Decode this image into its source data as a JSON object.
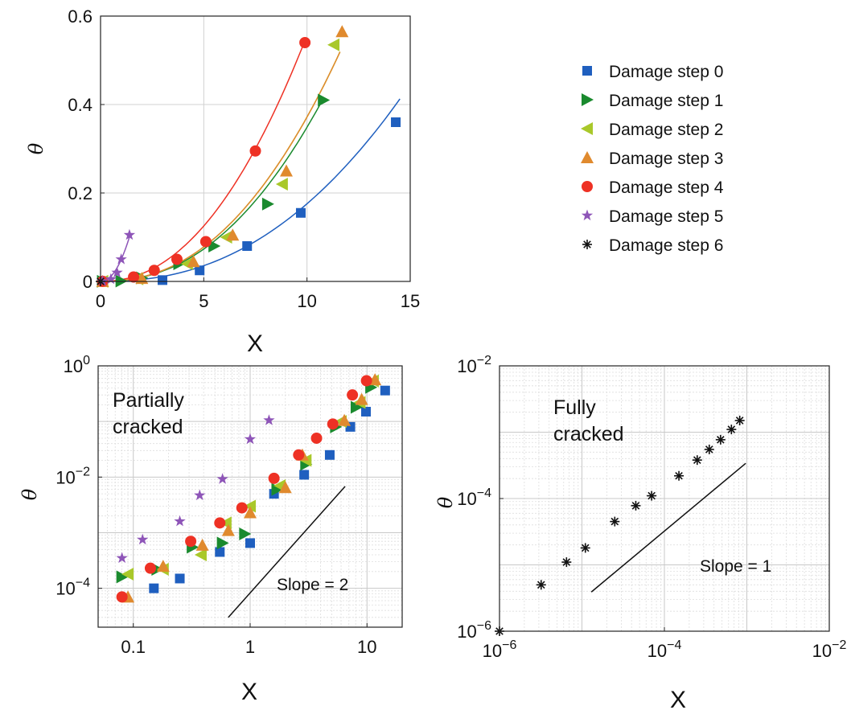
{
  "chart_data": [
    {
      "type": "scatter",
      "xlabel": "X",
      "ylabel": "θ",
      "xlim": [
        0,
        15
      ],
      "ylim": [
        0,
        0.6
      ],
      "xscale": "linear",
      "yscale": "linear",
      "grid": true,
      "xticks": [
        "0",
        "5",
        "10",
        "15"
      ],
      "yticks": [
        "0",
        "0.2",
        "0.4",
        "0.6"
      ],
      "legend_position": "outside-right",
      "series": [
        {
          "name": "Damage step 0",
          "color": "#1f5fbf",
          "marker": "square",
          "x": [
            0.1,
            3.0,
            4.8,
            7.1,
            9.7,
            14.3
          ],
          "y": [
            0.0002,
            0.003,
            0.025,
            0.08,
            0.155,
            0.36
          ],
          "fit": {
            "a": 0.00088,
            "p": 2.3,
            "xmax": 14.5
          }
        },
        {
          "name": "Damage step 1",
          "color": "#1a8a2e",
          "marker": "triangle-right",
          "x": [
            0.1,
            1.0,
            2.0,
            3.8,
            5.5,
            8.1,
            10.8
          ],
          "y": [
            0.0002,
            0.001,
            0.008,
            0.04,
            0.08,
            0.175,
            0.41
          ],
          "fit": {
            "a": 0.00196,
            "p": 2.25,
            "xmax": 10.8
          }
        },
        {
          "name": "Damage step 2",
          "color": "#a9c82a",
          "marker": "triangle-left",
          "x": [
            0.1,
            1.8,
            4.2,
            6.1,
            8.8,
            11.3
          ],
          "y": [
            0.0002,
            0.006,
            0.04,
            0.1,
            0.22,
            0.535
          ],
          "fit": {
            "a": 0.00209,
            "p": 2.25,
            "xmax": 11.6
          }
        },
        {
          "name": "Damage step 3",
          "color": "#e08a2e",
          "marker": "triangle-up",
          "x": [
            0.1,
            2.0,
            4.5,
            6.4,
            9.0,
            11.7
          ],
          "y": [
            0.0002,
            0.007,
            0.045,
            0.105,
            0.25,
            0.565
          ],
          "fit": {
            "a": 0.00209,
            "p": 2.25,
            "xmax": 11.6
          }
        },
        {
          "name": "Damage step 4",
          "color": "#ee3124",
          "marker": "circle",
          "x": [
            0.1,
            1.6,
            2.6,
            3.7,
            5.1,
            7.5,
            9.9
          ],
          "y": [
            0.0003,
            0.01,
            0.025,
            0.05,
            0.09,
            0.295,
            0.54
          ],
          "fit": {
            "a": 0.00394,
            "p": 2.15,
            "xmax": 9.9
          }
        },
        {
          "name": "Damage step 5",
          "color": "#8e55b8",
          "marker": "star",
          "x": [
            0.1,
            0.5,
            0.8,
            1.0,
            1.4
          ],
          "y": [
            0.0003,
            0.005,
            0.02,
            0.05,
            0.105
          ],
          "fit": {
            "a": 0.0495,
            "p": 2.1,
            "xmax": 1.4
          }
        },
        {
          "name": "Damage step 6",
          "color": "#111111",
          "marker": "asterisk",
          "x": [
            0.0
          ],
          "y": [
            0.0
          ]
        }
      ]
    },
    {
      "type": "scatter",
      "xlabel": "X",
      "ylabel": "θ",
      "xscale": "log",
      "yscale": "log",
      "xlim": [
        0.05,
        20
      ],
      "ylim": [
        2e-05,
        1
      ],
      "grid": true,
      "xticks": [
        "0.1",
        "1",
        "10"
      ],
      "yticks": [
        "10^0",
        "10^-2",
        "10^-4"
      ],
      "annotation": "Partially cracked",
      "slope_label": "Slope = 2",
      "slope_line": {
        "x1": 0.65,
        "y1": 3e-05,
        "x2": 6.5,
        "y2": 0.0068
      },
      "series": [
        {
          "name": "Damage step 0",
          "color": "#1f5fbf",
          "marker": "square",
          "x": [
            0.15,
            0.25,
            0.55,
            1.0,
            1.6,
            2.9,
            4.8,
            7.2,
            9.8,
            14.3
          ],
          "y": [
            0.0001,
            0.00015,
            0.00045,
            0.00065,
            0.005,
            0.011,
            0.025,
            0.08,
            0.15,
            0.36
          ]
        },
        {
          "name": "Damage step 1",
          "color": "#1a8a2e",
          "marker": "triangle-right",
          "x": [
            0.08,
            0.16,
            0.32,
            0.58,
            0.9,
            1.7,
            3.0,
            5.4,
            8.1,
            10.8
          ],
          "y": [
            0.00016,
            0.00022,
            0.00055,
            0.00065,
            0.00095,
            0.006,
            0.017,
            0.08,
            0.18,
            0.41
          ]
        },
        {
          "name": "Damage step 2",
          "color": "#a9c82a",
          "marker": "triangle-left",
          "x": [
            0.09,
            0.18,
            0.38,
            0.62,
            1.0,
            1.8,
            3.0,
            6.0,
            8.7,
            11.3
          ],
          "y": [
            0.00018,
            0.00022,
            0.0004,
            0.0015,
            0.003,
            0.007,
            0.02,
            0.1,
            0.22,
            0.535
          ]
        },
        {
          "name": "Damage step 3",
          "color": "#e08a2e",
          "marker": "triangle-up",
          "x": [
            0.09,
            0.18,
            0.39,
            0.65,
            1.0,
            2.0,
            2.8,
            6.4,
            9.0,
            11.7
          ],
          "y": [
            7e-05,
            0.00025,
            0.0006,
            0.0011,
            0.0023,
            0.0065,
            0.025,
            0.105,
            0.25,
            0.565
          ]
        },
        {
          "name": "Damage step 4",
          "color": "#ee3124",
          "marker": "circle",
          "x": [
            0.08,
            0.14,
            0.31,
            0.55,
            0.85,
            1.6,
            2.6,
            3.7,
            5.1,
            7.5,
            9.9
          ],
          "y": [
            7e-05,
            0.00023,
            0.0007,
            0.0015,
            0.0028,
            0.0095,
            0.025,
            0.05,
            0.09,
            0.3,
            0.54
          ]
        },
        {
          "name": "Damage step 5",
          "color": "#8e55b8",
          "marker": "star",
          "x": [
            0.08,
            0.12,
            0.25,
            0.37,
            0.58,
            1.0,
            1.45
          ],
          "y": [
            0.00035,
            0.00075,
            0.0016,
            0.0047,
            0.0092,
            0.048,
            0.105
          ]
        }
      ]
    },
    {
      "type": "scatter",
      "xlabel": "X",
      "ylabel": "θ",
      "xscale": "log",
      "yscale": "log",
      "xlim": [
        1e-06,
        0.01
      ],
      "ylim": [
        1e-06,
        0.01
      ],
      "grid": true,
      "xticks": [
        "10^-6",
        "10^-4",
        "10^-2"
      ],
      "yticks": [
        "10^-2",
        "10^-4",
        "10^-6"
      ],
      "annotation": "Fully cracked",
      "slope_label": "Slope = 1",
      "slope_line": {
        "x1": 1.3e-05,
        "y1": 3.9e-06,
        "x2": 0.00097,
        "y2": 0.00034
      },
      "series": [
        {
          "name": "Damage step 6",
          "color": "#111111",
          "marker": "asterisk",
          "x": [
            1e-06,
            3.2e-06,
            6.5e-06,
            1.1e-05,
            2.5e-05,
            4.5e-05,
            7e-05,
            0.00015,
            0.00025,
            0.00035,
            0.00048,
            0.00065,
            0.00082
          ],
          "y": [
            1e-06,
            5e-06,
            1.1e-05,
            1.8e-05,
            4.5e-05,
            7.8e-05,
            0.00011,
            0.00022,
            0.00038,
            0.00055,
            0.00077,
            0.0011,
            0.0015
          ]
        }
      ]
    }
  ]
}
